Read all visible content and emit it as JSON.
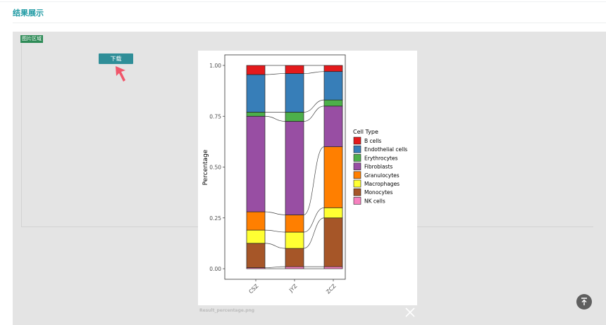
{
  "header": {
    "title": "结果展示"
  },
  "panel": {
    "tag_label": "图片区域",
    "download_label": "下载"
  },
  "viewer": {
    "file_caption": "Result_percentage.png"
  },
  "icons": {
    "close": "close-icon",
    "back_to_top": "arrow-up-to-line-icon",
    "pointer": "arrow-pointer-icon"
  },
  "colors": {
    "accent": "#1f9aa3",
    "download_button": "#2f8e98",
    "region_tag": "#2e8b57",
    "pointer_arrow": "#f0566a"
  },
  "chart_data": {
    "type": "bar",
    "stacked": true,
    "categories": [
      "CSZ",
      "JYZ",
      "ZCZ"
    ],
    "ylabel": "Percentage",
    "yticks": [
      "0.00",
      "0.25",
      "0.50",
      "0.75",
      "1.00"
    ],
    "ylim": [
      0,
      1
    ],
    "legend_title": "Cell Type",
    "legend_position": "right",
    "series": [
      {
        "name": "NK cells",
        "color": "#f781bf",
        "values": [
          0.005,
          0.01,
          0.01
        ]
      },
      {
        "name": "Monocytes",
        "color": "#a65628",
        "values": [
          0.12,
          0.09,
          0.24
        ]
      },
      {
        "name": "Macrophages",
        "color": "#ffff33",
        "values": [
          0.065,
          0.08,
          0.05
        ]
      },
      {
        "name": "Granulocytes",
        "color": "#ff7f00",
        "values": [
          0.09,
          0.085,
          0.3
        ]
      },
      {
        "name": "Fibroblasts",
        "color": "#984ea3",
        "values": [
          0.47,
          0.46,
          0.2
        ]
      },
      {
        "name": "Erythrocytes",
        "color": "#4daf4a",
        "values": [
          0.02,
          0.045,
          0.03
        ]
      },
      {
        "name": "Endothelial cells",
        "color": "#377eb8",
        "values": [
          0.185,
          0.19,
          0.14
        ]
      },
      {
        "name": "B cells",
        "color": "#e41a1c",
        "values": [
          0.045,
          0.04,
          0.03
        ]
      }
    ]
  }
}
